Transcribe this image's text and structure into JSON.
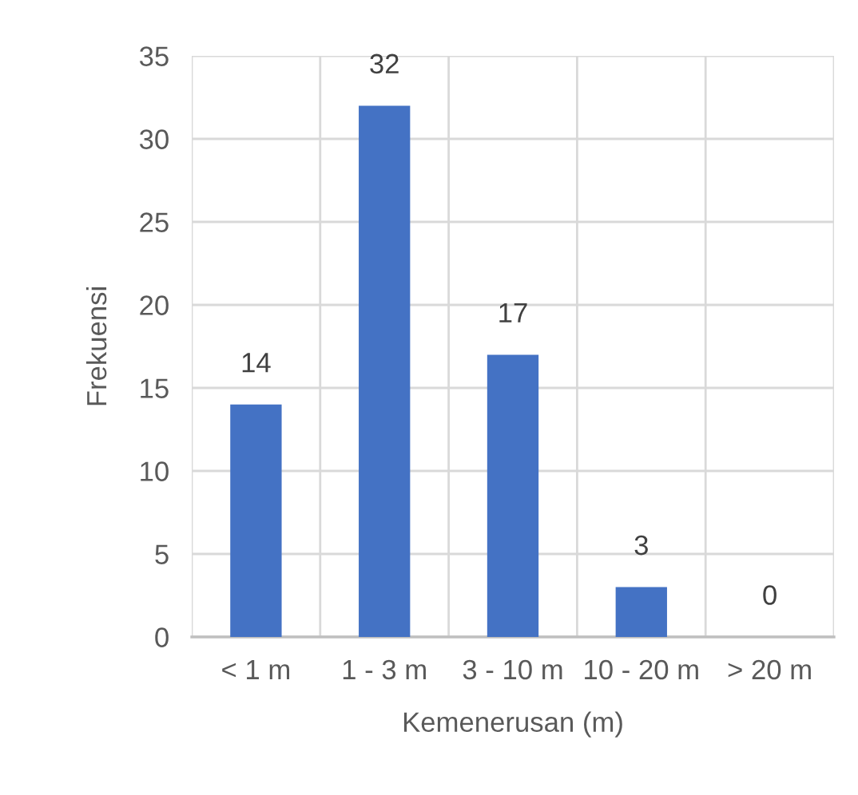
{
  "chart_data": {
    "type": "bar",
    "xlabel": "Kemenerusan (m)",
    "ylabel": "Frekuensi",
    "categories": [
      "< 1 m",
      "1 - 3 m",
      "3 - 10 m",
      "10 - 20 m",
      "> 20 m"
    ],
    "values": [
      14,
      32,
      17,
      3,
      0
    ],
    "color": "#4472c4",
    "ylim": [
      0,
      35
    ],
    "yticks": [
      0,
      5,
      10,
      15,
      20,
      25,
      30,
      35
    ],
    "grid": true,
    "data_labels": true
  }
}
